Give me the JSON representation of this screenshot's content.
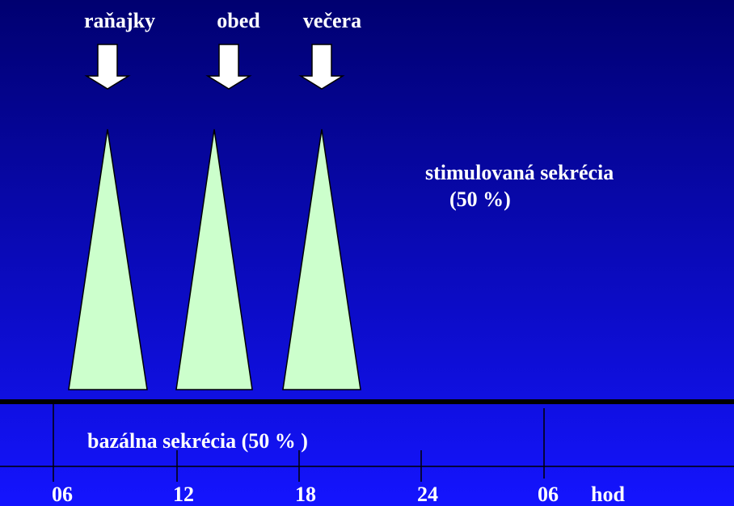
{
  "meals": [
    "raňajky",
    "obed",
    "večera"
  ],
  "stimulated": {
    "label": "stimulovaná sekrécia",
    "share": "(50 %)"
  },
  "basal": {
    "label": "bazálna sekrécia (50 % )"
  },
  "axis": {
    "ticks": [
      "06",
      "12",
      "18",
      "24",
      "06"
    ],
    "unit": "hod"
  }
}
